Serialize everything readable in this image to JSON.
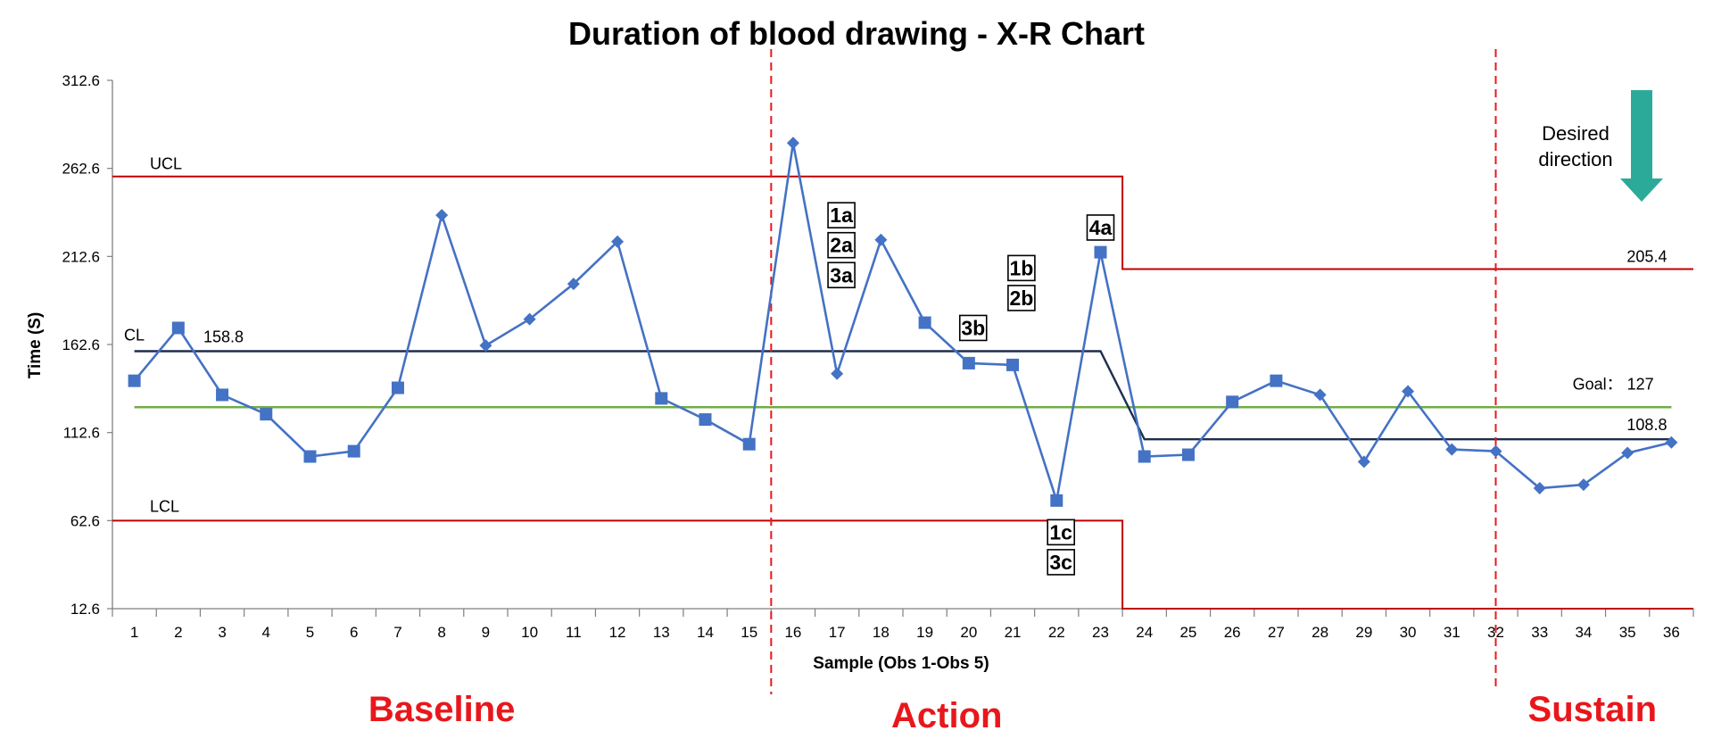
{
  "chart_data": {
    "type": "line",
    "title": "Duration of blood drawing  - X-R Chart",
    "xlabel": "Sample  (Obs 1-Obs 5)",
    "ylabel": "Time (S)",
    "ylim": [
      12.6,
      312.6
    ],
    "yticks": [
      "312.6",
      "262.6",
      "212.6",
      "162.6",
      "112.6",
      "62.6",
      "12.6"
    ],
    "categories": [
      "1",
      "2",
      "3",
      "4",
      "5",
      "6",
      "7",
      "8",
      "9",
      "10",
      "11",
      "12",
      "13",
      "14",
      "15",
      "16",
      "17",
      "18",
      "19",
      "20",
      "21",
      "22",
      "23",
      "24",
      "25",
      "26",
      "27",
      "28",
      "29",
      "30",
      "31",
      "32",
      "33",
      "34",
      "35",
      "36"
    ],
    "series": [
      {
        "values": [
          142,
          172,
          134,
          123,
          99,
          102,
          138,
          236,
          162,
          177,
          197,
          221,
          132,
          120,
          106,
          277,
          146,
          222,
          175,
          152,
          151,
          74,
          215,
          99,
          100,
          130,
          142,
          134,
          96,
          136,
          103,
          102,
          81,
          83,
          101,
          107
        ],
        "markers": [
          "square",
          "square",
          "square",
          "square",
          "square",
          "square",
          "square",
          "diamond",
          "diamond",
          "diamond",
          "diamond",
          "diamond",
          "square",
          "square",
          "square",
          "diamond",
          "diamond",
          "diamond",
          "square",
          "square",
          "square",
          "square",
          "square",
          "square",
          "square",
          "square",
          "square",
          "diamond",
          "diamond",
          "diamond",
          "diamond",
          "diamond",
          "diamond",
          "diamond",
          "diamond",
          "diamond"
        ],
        "color": "#4472C4"
      }
    ],
    "limits": {
      "ucl": {
        "label": "UCL",
        "phase1": 258.0,
        "phase2": 205.4,
        "value_label": "205.4",
        "color": "#C00000"
      },
      "lcl": {
        "label": "LCL",
        "phase1": 62.6,
        "phase2": 12.6,
        "color": "#C00000"
      },
      "cl": {
        "label": "CL",
        "phase1": 158.8,
        "phase2": 108.8,
        "phase1_label": "158.8",
        "phase2_label": "108.8",
        "color": "#1F2D4E"
      },
      "goal": {
        "label": "Goal： 127",
        "value": 127,
        "color": "#70AD47"
      }
    },
    "phase_lines_after_sample": [
      15.5,
      32
    ],
    "phases": [
      {
        "label": "Baseline",
        "center_sample": 8
      },
      {
        "label": "Action",
        "center_sample": 19.5
      },
      {
        "label": "Sustain",
        "center_sample": 34.2
      }
    ],
    "annotations": [
      {
        "text": "1a",
        "x": 17.1,
        "y": 236
      },
      {
        "text": "2a",
        "x": 17.1,
        "y": 219
      },
      {
        "text": "3a",
        "x": 17.1,
        "y": 202
      },
      {
        "text": "1b",
        "x": 21.2,
        "y": 206
      },
      {
        "text": "2b",
        "x": 21.2,
        "y": 189
      },
      {
        "text": "3b",
        "x": 20.1,
        "y": 172
      },
      {
        "text": "4a",
        "x": 23.0,
        "y": 229
      },
      {
        "text": "1c",
        "x": 22.1,
        "y": 56
      },
      {
        "text": "3c",
        "x": 22.1,
        "y": 39
      }
    ],
    "desired_direction": {
      "line1": "Desired",
      "line2": "direction",
      "arrow": "down-arrow-icon",
      "color": "#2BAA9A"
    },
    "accent_colors": {
      "phase_text": "#E8171B",
      "phase_divider": "#E8171B"
    }
  }
}
